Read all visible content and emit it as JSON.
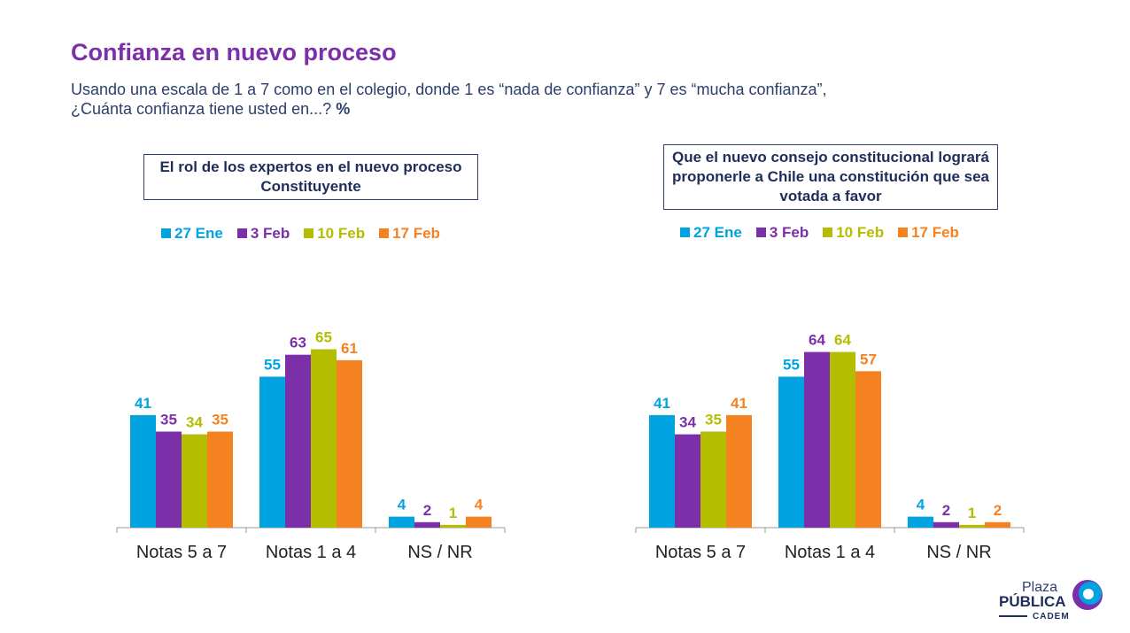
{
  "title": "Confianza en nuevo proceso",
  "subtitle_line1": "Usando una escala de 1 a 7 como en el colegio, donde 1 es “nada de confianza” y 7 es “mucha confianza”,",
  "subtitle_line2": "¿Cuánta confianza tiene usted en...?",
  "subtitle_unit": "%",
  "colors": {
    "27 Ene": "#00a3e0",
    "3 Feb": "#7b2fa8",
    "10 Feb": "#b5bd00",
    "17 Feb": "#f58220"
  },
  "logo": {
    "line1": "Plaza",
    "line2": "PÚBLICA",
    "line3": "CADEM"
  },
  "chart_data": [
    {
      "type": "bar",
      "title": "El rol de los expertos en el nuevo proceso Constituyente",
      "categories": [
        "Notas 5 a 7",
        "Notas 1 a 4",
        "NS / NR"
      ],
      "series": [
        {
          "name": "27 Ene",
          "values": [
            41,
            55,
            4
          ]
        },
        {
          "name": "3 Feb",
          "values": [
            35,
            63,
            2
          ]
        },
        {
          "name": "10 Feb",
          "values": [
            34,
            65,
            1
          ]
        },
        {
          "name": "17 Feb",
          "values": [
            35,
            61,
            4
          ]
        }
      ],
      "legend": "top",
      "ylim": [
        0,
        70
      ],
      "grid": false
    },
    {
      "type": "bar",
      "title": "Que el nuevo consejo constitucional logrará proponerle a Chile una constitución que sea votada a favor",
      "categories": [
        "Notas 5 a 7",
        "Notas 1 a 4",
        "NS / NR"
      ],
      "series": [
        {
          "name": "27 Ene",
          "values": [
            41,
            55,
            4
          ]
        },
        {
          "name": "3 Feb",
          "values": [
            34,
            64,
            2
          ]
        },
        {
          "name": "10 Feb",
          "values": [
            35,
            64,
            1
          ]
        },
        {
          "name": "17 Feb",
          "values": [
            41,
            57,
            2
          ]
        }
      ],
      "legend": "top",
      "ylim": [
        0,
        70
      ],
      "grid": false
    }
  ]
}
